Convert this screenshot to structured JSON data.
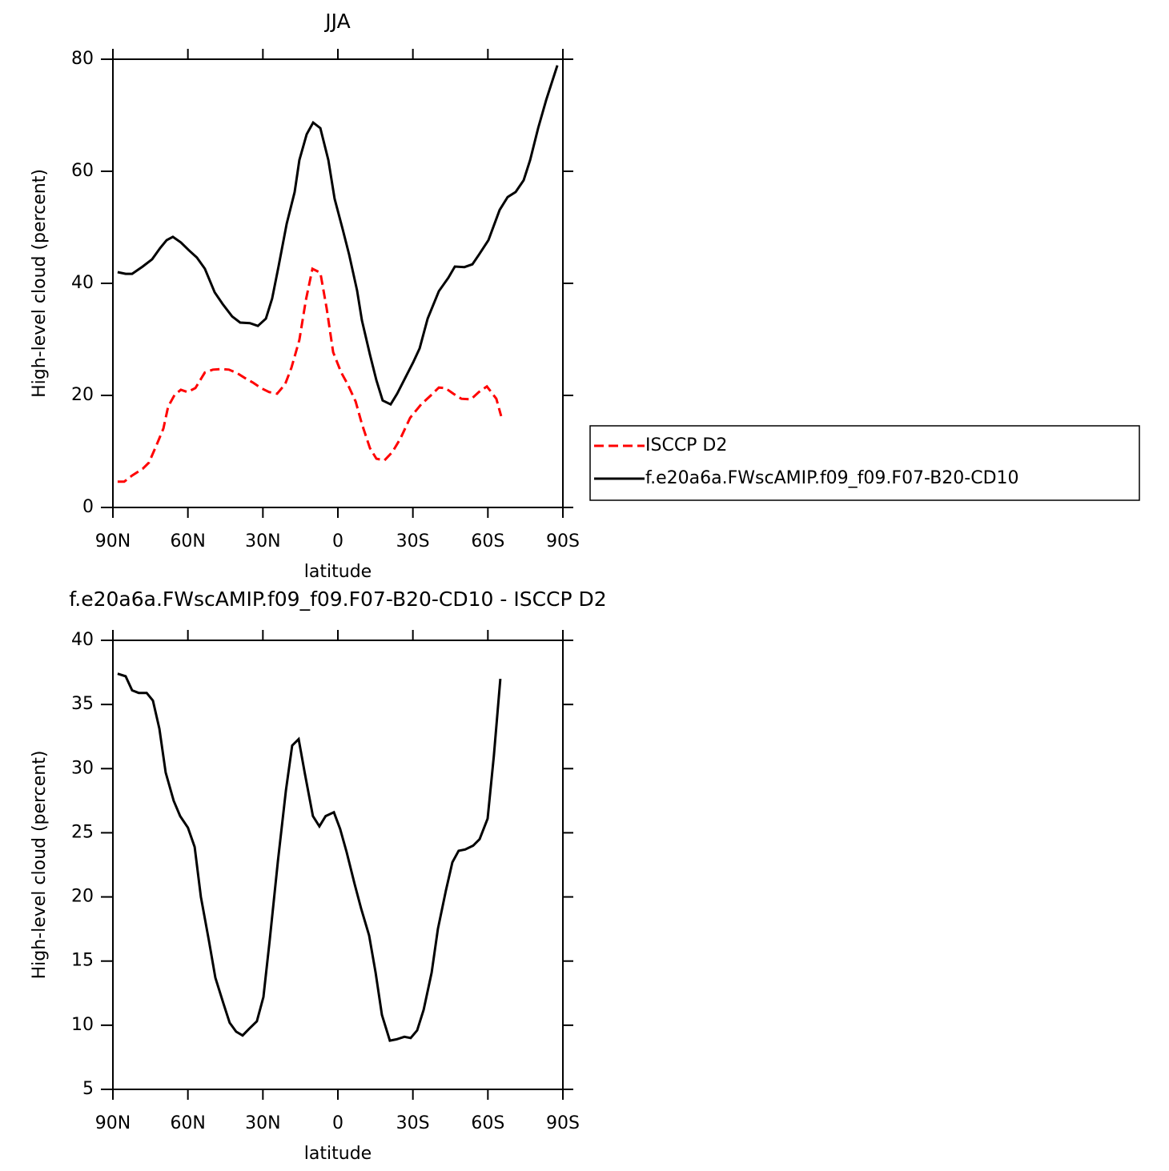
{
  "chart_data": [
    {
      "type": "line",
      "title": "JJA",
      "x_label": "latitude",
      "y_label": "High-level cloud (percent)",
      "xlim": [
        90,
        -90
      ],
      "xticks": [
        {
          "value": 90,
          "label": "90N"
        },
        {
          "value": 60,
          "label": "60N"
        },
        {
          "value": 30,
          "label": "30N"
        },
        0,
        {
          "value": -30,
          "label": "30S"
        },
        {
          "value": -60,
          "label": "60S"
        },
        {
          "value": -90,
          "label": "90S"
        }
      ],
      "ylim": [
        0,
        80
      ],
      "yticks": [
        0,
        20,
        40,
        60,
        80
      ],
      "legend": "right",
      "series": [
        {
          "name": "ISCCP D2",
          "color": "#ff0000",
          "dash": true,
          "x": [
            88.1,
            85.5,
            82.3,
            78.1,
            75.6,
            72.4,
            69.8,
            67.9,
            65.3,
            62.8,
            60.2,
            57.0,
            53.2,
            50.0,
            46.8,
            43.6,
            40.4,
            37.2,
            34.0,
            30.7,
            27.5,
            24.3,
            21.1,
            18.6,
            15.4,
            12.8,
            10.2,
            7.0,
            4.5,
            1.9,
            -1.3,
            -3.9,
            -7.1,
            -9.6,
            -12.8,
            -15.4,
            -18.6,
            -21.8,
            -25.0,
            -28.9,
            -33.3,
            -37.2,
            -40.4,
            -43.0,
            -46.2,
            -49.4,
            -53.2,
            -56.4,
            -59.6,
            -63.4,
            -65.3
          ],
          "values": [
            4.6,
            4.6,
            5.7,
            6.9,
            8.0,
            11.3,
            14.1,
            18.0,
            20.1,
            21.0,
            20.6,
            21.3,
            24.1,
            24.6,
            24.7,
            24.6,
            24.0,
            23.1,
            22.3,
            21.3,
            20.6,
            20.3,
            22.0,
            24.9,
            29.9,
            37.0,
            42.6,
            41.9,
            35.6,
            27.7,
            24.1,
            22.0,
            18.9,
            14.9,
            10.6,
            8.7,
            8.4,
            9.9,
            12.3,
            16.0,
            18.4,
            20.0,
            21.4,
            21.3,
            20.3,
            19.4,
            19.3,
            20.6,
            21.6,
            19.4,
            16.3
          ]
        },
        {
          "name": "f.e20a6a.FWscAMIP.f09_f09.F07-B20-CD10",
          "color": "#000000",
          "dash": false,
          "x": [
            88.1,
            84.9,
            82.3,
            78.1,
            74.3,
            71.1,
            68.5,
            66.0,
            62.8,
            59.6,
            56.4,
            53.2,
            49.3,
            46.1,
            42.3,
            39.1,
            35.2,
            32.0,
            28.8,
            26.3,
            23.7,
            20.5,
            17.3,
            15.4,
            12.5,
            9.9,
            7.0,
            3.8,
            1.3,
            -1.9,
            -4.5,
            -7.7,
            -9.6,
            -12.8,
            -15.4,
            -17.9,
            -21.1,
            -23.7,
            -26.9,
            -30.1,
            -32.7,
            -35.9,
            -40.4,
            -44.2,
            -46.8,
            -50.6,
            -53.8,
            -56.4,
            -60.2,
            -64.7,
            -67.9,
            -71.1,
            -74.3,
            -76.9,
            -80.1,
            -83.3,
            -85.9,
            -87.8
          ],
          "values": [
            42.0,
            41.7,
            41.7,
            43.0,
            44.3,
            46.3,
            47.7,
            48.3,
            47.3,
            45.9,
            44.6,
            42.6,
            38.4,
            36.3,
            34.1,
            33.0,
            32.9,
            32.4,
            33.7,
            37.3,
            43.1,
            50.6,
            56.3,
            62.0,
            66.6,
            68.7,
            67.7,
            62.0,
            55.1,
            49.7,
            45.1,
            38.7,
            33.4,
            27.3,
            22.7,
            19.1,
            18.4,
            20.3,
            23.1,
            25.9,
            28.4,
            33.7,
            38.6,
            41.0,
            43.0,
            42.9,
            43.4,
            45.1,
            47.7,
            53.1,
            55.4,
            56.3,
            58.4,
            62.0,
            67.7,
            72.7,
            76.3,
            78.9
          ]
        }
      ]
    },
    {
      "type": "line",
      "title": "f.e20a6a.FWscAMIP.f09_f09.F07-B20-CD10 - ISCCP D2",
      "x_label": "latitude",
      "y_label": "High-level cloud (percent)",
      "xlim": [
        90,
        -90
      ],
      "xticks": [
        {
          "value": 90,
          "label": "90N"
        },
        {
          "value": 60,
          "label": "60N"
        },
        {
          "value": 30,
          "label": "30N"
        },
        0,
        {
          "value": -30,
          "label": "30S"
        },
        {
          "value": -60,
          "label": "60S"
        },
        {
          "value": -90,
          "label": "90S"
        }
      ],
      "ylim": [
        5,
        40
      ],
      "yticks": [
        5,
        10,
        15,
        20,
        25,
        30,
        35,
        40
      ],
      "series": [
        {
          "color": "#000000",
          "dash": false,
          "x": [
            88.1,
            84.9,
            82.3,
            79.7,
            76.5,
            74.0,
            71.4,
            68.9,
            65.7,
            63.1,
            60.0,
            57.3,
            54.8,
            51.6,
            49.0,
            45.8,
            43.3,
            40.7,
            38.1,
            35.6,
            32.4,
            29.8,
            27.3,
            24.0,
            20.8,
            18.3,
            15.7,
            13.2,
            10.0,
            7.4,
            4.9,
            1.6,
            -0.9,
            -3.5,
            -6.7,
            -9.3,
            -12.5,
            -15.1,
            -17.6,
            -20.8,
            -23.4,
            -26.6,
            -29.1,
            -31.7,
            -34.3,
            -37.5,
            -40.0,
            -43.2,
            -45.8,
            -48.3,
            -50.9,
            -54.1,
            -56.7,
            -59.9,
            -62.4,
            -65.0
          ],
          "values": [
            37.4,
            37.2,
            36.1,
            35.9,
            35.9,
            35.3,
            33.1,
            29.7,
            27.5,
            26.3,
            25.4,
            23.9,
            20.0,
            16.6,
            13.7,
            11.7,
            10.2,
            9.5,
            9.2,
            9.7,
            10.3,
            12.2,
            16.6,
            22.8,
            28.3,
            31.8,
            32.3,
            29.6,
            26.3,
            25.5,
            26.3,
            26.6,
            25.3,
            23.5,
            21.0,
            19.1,
            17.0,
            14.1,
            10.8,
            8.8,
            8.9,
            9.1,
            9.0,
            9.6,
            11.2,
            14.1,
            17.5,
            20.5,
            22.7,
            23.6,
            23.7,
            24.0,
            24.5,
            26.1,
            31.0,
            37.0
          ]
        }
      ]
    }
  ]
}
